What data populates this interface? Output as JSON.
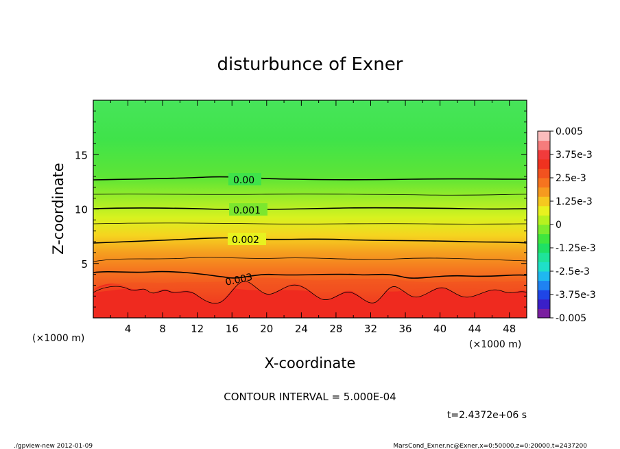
{
  "chart_data": {
    "type": "contour",
    "title": "disturbunce of Exner",
    "xlabel": "X-coordinate",
    "ylabel": "Z-coordinate",
    "x_unit_top": "(×1000 m)",
    "x_unit_left": "(×1000 m)",
    "xlim": [
      0,
      50
    ],
    "ylim": [
      0,
      20
    ],
    "x_tick_labels": [
      "4",
      "8",
      "12",
      "16",
      "20",
      "24",
      "28",
      "32",
      "36",
      "40",
      "44",
      "48"
    ],
    "y_tick_labels": [
      "5",
      "10",
      "15"
    ],
    "contour_interval_text": "CONTOUR INTERVAL = 5.000E-04",
    "time_text": "t=2.4372e+06 s",
    "contours": [
      {
        "label": "0.00",
        "value": 0.0,
        "z_level": 12.7
      },
      {
        "label": "0.001",
        "value": 0.001,
        "z_level": 10.0
      },
      {
        "label": "0.002",
        "value": 0.002,
        "z_level": 7.1
      },
      {
        "label": "0.003",
        "value": 0.003,
        "z_level": 4.1
      }
    ],
    "colorbar": {
      "range": [
        -0.005,
        0.005
      ],
      "labels": [
        "0.005",
        "3.75e-3",
        "2.5e-3",
        "1.25e-3",
        "0",
        "-1.25e-3",
        "-2.5e-3",
        "-3.75e-3",
        "-0.005"
      ],
      "colors": [
        "#7a1fa0",
        "#3a1fc8",
        "#1f45e6",
        "#1f82f2",
        "#1fb8f0",
        "#1fe0c8",
        "#1fe39a",
        "#1fe064",
        "#3fe63e",
        "#7cec2d",
        "#b7f21f",
        "#e8f21f",
        "#f5c81f",
        "#f59a1f",
        "#f5741f",
        "#f2521f",
        "#ef321f",
        "#f23b3b",
        "#f67c7c",
        "#fbbcbc"
      ]
    }
  },
  "footer": {
    "left": "./gpview-new   2012-01-09",
    "right": "MarsCond_Exner.nc@Exner,x=0:50000,z=0:20000,t=2437200"
  }
}
